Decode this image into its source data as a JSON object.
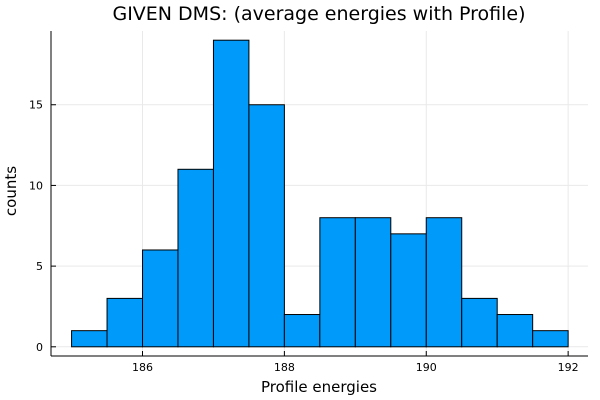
{
  "chart_data": {
    "type": "bar",
    "title": "GIVEN DMS: (average energies with Profile)",
    "xlabel": "Profile energies",
    "ylabel": "counts",
    "bin_width": 0.5,
    "bins": [
      {
        "x0": 185.0,
        "x1": 185.5,
        "count": 1
      },
      {
        "x0": 185.5,
        "x1": 186.0,
        "count": 3
      },
      {
        "x0": 186.0,
        "x1": 186.5,
        "count": 6
      },
      {
        "x0": 186.5,
        "x1": 187.0,
        "count": 11
      },
      {
        "x0": 187.0,
        "x1": 187.5,
        "count": 19
      },
      {
        "x0": 187.5,
        "x1": 188.0,
        "count": 15
      },
      {
        "x0": 188.0,
        "x1": 188.5,
        "count": 2
      },
      {
        "x0": 188.5,
        "x1": 189.0,
        "count": 8
      },
      {
        "x0": 189.0,
        "x1": 189.5,
        "count": 8
      },
      {
        "x0": 189.5,
        "x1": 190.0,
        "count": 7
      },
      {
        "x0": 190.0,
        "x1": 190.5,
        "count": 8
      },
      {
        "x0": 190.5,
        "x1": 191.0,
        "count": 3
      },
      {
        "x0": 191.0,
        "x1": 191.5,
        "count": 2
      },
      {
        "x0": 191.5,
        "x1": 192.0,
        "count": 1
      }
    ],
    "xlim": [
      184.71,
      192.28
    ],
    "ylim": [
      -0.57,
      19.57
    ],
    "xticks": [
      186,
      188,
      190,
      192
    ],
    "yticks": [
      0,
      5,
      10,
      15
    ],
    "grid": true,
    "legend": "none",
    "bar_color": "#009AFA",
    "edge_color": "#000000"
  }
}
